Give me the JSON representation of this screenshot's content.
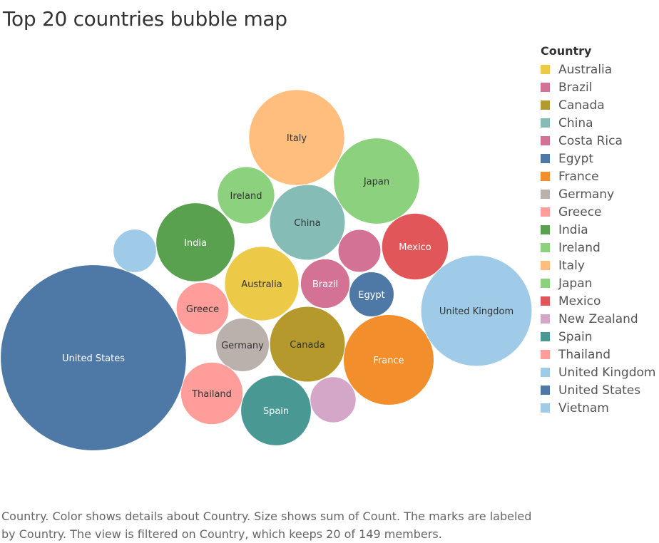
{
  "title": "Top 20 countries bubble map",
  "caption": "Country.  Color shows details about Country.  Size shows sum of Count.  The marks are labeled by Country. The view is filtered on Country, which keeps 20 of 149 members.",
  "chart_data": {
    "type": "bubble",
    "legend_title": "Country",
    "legend_position": "right",
    "items": [
      {
        "name": "Australia",
        "label": "Australia",
        "color": "#edc948",
        "value": 1.18
      },
      {
        "name": "Brazil",
        "label": "Brazil",
        "color": "#d37295",
        "value": 0.52
      },
      {
        "name": "Canada",
        "label": "Canada",
        "color": "#b6992d",
        "value": 1.22
      },
      {
        "name": "China",
        "label": "China",
        "color": "#86bcb6",
        "value": 1.22
      },
      {
        "name": "Costa Rica",
        "label": "",
        "color": "#d37295",
        "value": 0.39
      },
      {
        "name": "Egypt",
        "label": "Egypt",
        "color": "#4e79a7",
        "value": 0.43
      },
      {
        "name": "France",
        "label": "France",
        "color": "#f28e2b",
        "value": 1.75
      },
      {
        "name": "Germany",
        "label": "Germany",
        "color": "#bab0ac",
        "value": 0.61
      },
      {
        "name": "Greece",
        "label": "Greece",
        "color": "#ff9d9a",
        "value": 0.59
      },
      {
        "name": "India",
        "label": "India",
        "color": "#59a14f",
        "value": 1.33
      },
      {
        "name": "Ireland",
        "label": "Ireland",
        "color": "#8cd17d",
        "value": 0.7
      },
      {
        "name": "Italy",
        "label": "Italy",
        "color": "#ffbe7d",
        "value": 1.96
      },
      {
        "name": "Japan",
        "label": "Japan",
        "color": "#8cd17d",
        "value": 1.58
      },
      {
        "name": "Mexico",
        "label": "Mexico",
        "color": "#e15759",
        "value": 0.95
      },
      {
        "name": "New Zealand",
        "label": "",
        "color": "#d4a6c8",
        "value": 0.45
      },
      {
        "name": "Spain",
        "label": "Spain",
        "color": "#499894",
        "value": 1.06
      },
      {
        "name": "Thailand",
        "label": "Thailand",
        "color": "#ff9d9a",
        "value": 0.83
      },
      {
        "name": "United Kingdom",
        "label": "United Kingdom",
        "color": "#a0cbe8",
        "value": 2.64
      },
      {
        "name": "United States",
        "label": "United States",
        "color": "#4e79a7",
        "value": 7.38
      },
      {
        "name": "Vietnam",
        "label": "",
        "color": "#a0cbe8",
        "value": 0.4
      }
    ]
  }
}
